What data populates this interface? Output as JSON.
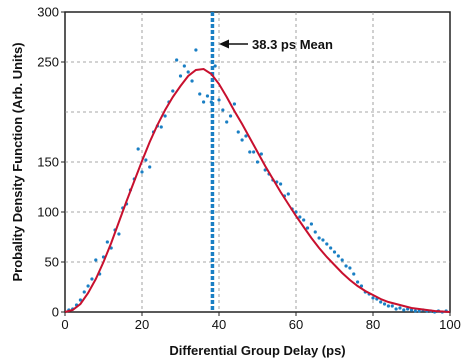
{
  "chart_data": {
    "type": "scatter",
    "xlabel": "Differential Group Delay (ps)",
    "ylabel": "Probality Density Function (Arb. Units)",
    "xlim": [
      0,
      100
    ],
    "ylim": [
      0,
      300
    ],
    "xticks": [
      0,
      20,
      40,
      60,
      80,
      100
    ],
    "yticks": [
      0,
      50,
      100,
      150,
      250,
      300
    ],
    "grid": true,
    "gridlines_y": [
      50,
      100,
      150,
      200,
      250,
      300
    ],
    "annotation": {
      "text": "38.3 ps Mean",
      "x": 38.3
    },
    "colors": {
      "points": "#1a7fc4",
      "fit": "#c8102e",
      "mean_line": "#1a7fc4"
    },
    "series": [
      {
        "kind": "points",
        "x": [
          1,
          2,
          3,
          4,
          5,
          6,
          7,
          8,
          9,
          10,
          11,
          12,
          13,
          14,
          15,
          16,
          17,
          18,
          19,
          20,
          21,
          22,
          23,
          24,
          25,
          26,
          27,
          28,
          29,
          30,
          31,
          32,
          33,
          34,
          35,
          36,
          37,
          38,
          39,
          40,
          41,
          42,
          43,
          44,
          45,
          46,
          47,
          48,
          49,
          50,
          51,
          52,
          53,
          54,
          55,
          56,
          57,
          58,
          59,
          60,
          61,
          62,
          63,
          64,
          65,
          66,
          67,
          68,
          69,
          70,
          71,
          72,
          73,
          74,
          75,
          76,
          77,
          78,
          79,
          80,
          81,
          82,
          83,
          84,
          85,
          86,
          87,
          88,
          89,
          90,
          91,
          92,
          93,
          94,
          95,
          96,
          97,
          98,
          99
        ],
        "y": [
          2,
          3,
          7,
          12,
          20,
          26,
          33,
          52,
          38,
          55,
          70,
          64,
          82,
          78,
          104,
          108,
          122,
          133,
          163,
          140,
          152,
          145,
          180,
          186,
          185,
          196,
          210,
          221,
          252,
          236,
          246,
          240,
          231,
          262,
          218,
          210,
          216,
          210,
          246,
          212,
          202,
          190,
          196,
          208,
          180,
          172,
          176,
          160,
          160,
          150,
          158,
          142,
          138,
          132,
          130,
          128,
          116,
          118,
          103,
          100,
          95,
          92,
          84,
          88,
          80,
          74,
          72,
          68,
          64,
          60,
          56,
          52,
          46,
          44,
          38,
          30,
          26,
          20,
          18,
          14,
          13,
          10,
          8,
          6,
          6,
          3,
          4,
          2,
          3,
          2,
          1,
          1,
          2,
          1,
          1,
          0,
          1,
          0,
          1
        ]
      },
      {
        "kind": "fit",
        "x": [
          0,
          2,
          4,
          6,
          8,
          10,
          12,
          14,
          16,
          18,
          20,
          22,
          24,
          26,
          28,
          30,
          32,
          34,
          36,
          38,
          40,
          42,
          44,
          46,
          48,
          50,
          52,
          54,
          56,
          58,
          60,
          62,
          64,
          66,
          68,
          70,
          72,
          74,
          76,
          78,
          80,
          82,
          84,
          86,
          88,
          90,
          92,
          94,
          96,
          98,
          100
        ],
        "y": [
          0,
          2,
          8,
          19,
          33,
          50,
          69,
          90,
          111,
          131,
          151,
          170,
          187,
          202,
          215,
          226,
          236,
          242,
          243,
          238,
          228,
          215,
          201,
          188,
          174,
          160,
          146,
          133,
          120,
          108,
          96,
          85,
          74,
          64,
          55,
          47,
          39,
          32,
          26,
          21,
          17,
          13,
          10,
          8,
          6,
          4,
          3,
          2,
          1,
          0.5,
          0
        ]
      }
    ]
  }
}
